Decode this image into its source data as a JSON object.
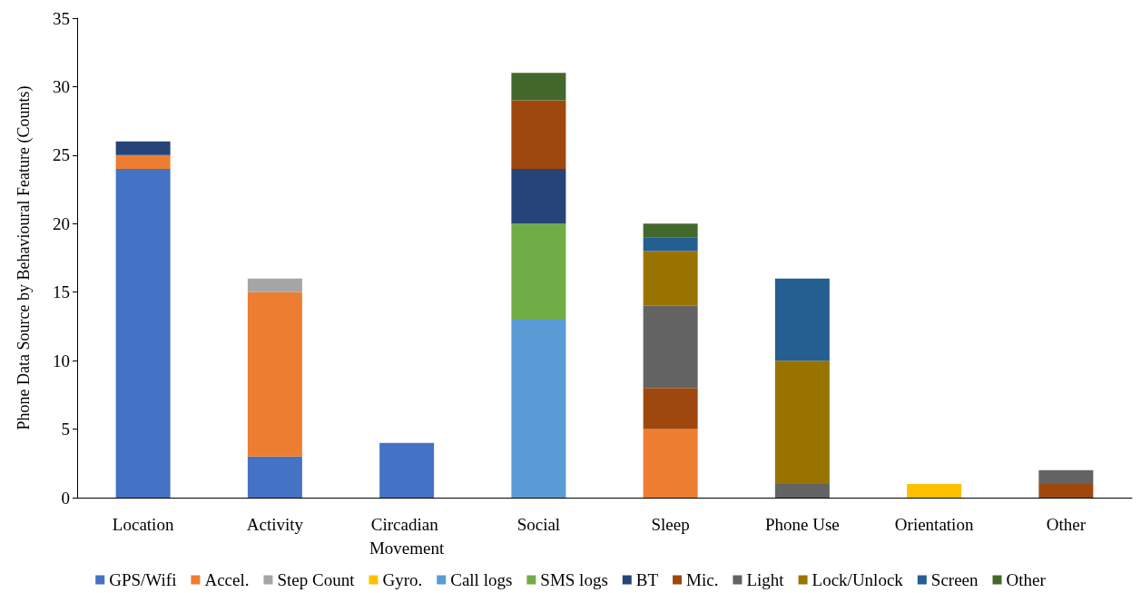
{
  "chart_data": {
    "type": "bar",
    "stacked": true,
    "ylabel": "Phone Data Source by Behavioural Feature (Counts)",
    "categories": [
      "Location",
      "Activity",
      "Circadian Movement",
      "Social",
      "Sleep",
      "Phone Use",
      "Orientation",
      "Other"
    ],
    "series": [
      {
        "name": "GPS/Wifi",
        "color": "#4472c4",
        "values": [
          24,
          3,
          4,
          null,
          null,
          null,
          null,
          null
        ]
      },
      {
        "name": "Accel.",
        "color": "#ed7d31",
        "values": [
          1,
          12,
          null,
          null,
          5,
          null,
          null,
          null
        ]
      },
      {
        "name": "Step Count",
        "color": "#a5a5a5",
        "values": [
          null,
          1,
          null,
          null,
          null,
          null,
          null,
          null
        ]
      },
      {
        "name": "Gyro.",
        "color": "#ffc000",
        "values": [
          null,
          null,
          null,
          null,
          null,
          null,
          1,
          null
        ]
      },
      {
        "name": "Call logs",
        "color": "#5b9bd5",
        "values": [
          null,
          null,
          null,
          13,
          null,
          null,
          null,
          null
        ]
      },
      {
        "name": "SMS logs",
        "color": "#70ad47",
        "values": [
          null,
          null,
          null,
          7,
          null,
          null,
          null,
          null
        ]
      },
      {
        "name": "BT",
        "color": "#264478",
        "values": [
          1,
          null,
          null,
          4,
          null,
          null,
          null,
          null
        ]
      },
      {
        "name": "Mic.",
        "color": "#9e480e",
        "values": [
          null,
          null,
          null,
          5,
          3,
          null,
          null,
          1
        ]
      },
      {
        "name": "Light",
        "color": "#636363",
        "values": [
          null,
          null,
          null,
          null,
          6,
          1,
          null,
          1
        ]
      },
      {
        "name": "Lock/Unlock",
        "color": "#997300",
        "values": [
          null,
          null,
          null,
          null,
          4,
          9,
          null,
          null
        ]
      },
      {
        "name": "Screen",
        "color": "#255e91",
        "values": [
          null,
          null,
          null,
          null,
          1,
          6,
          null,
          null
        ]
      },
      {
        "name": "Other",
        "color": "#43682b",
        "values": [
          null,
          null,
          null,
          2,
          1,
          null,
          null,
          null
        ]
      }
    ],
    "ylim": [
      0,
      35
    ],
    "yticks": [
      0,
      5,
      10,
      15,
      20,
      25,
      30,
      35
    ],
    "grid": false,
    "legend": "bottom"
  }
}
